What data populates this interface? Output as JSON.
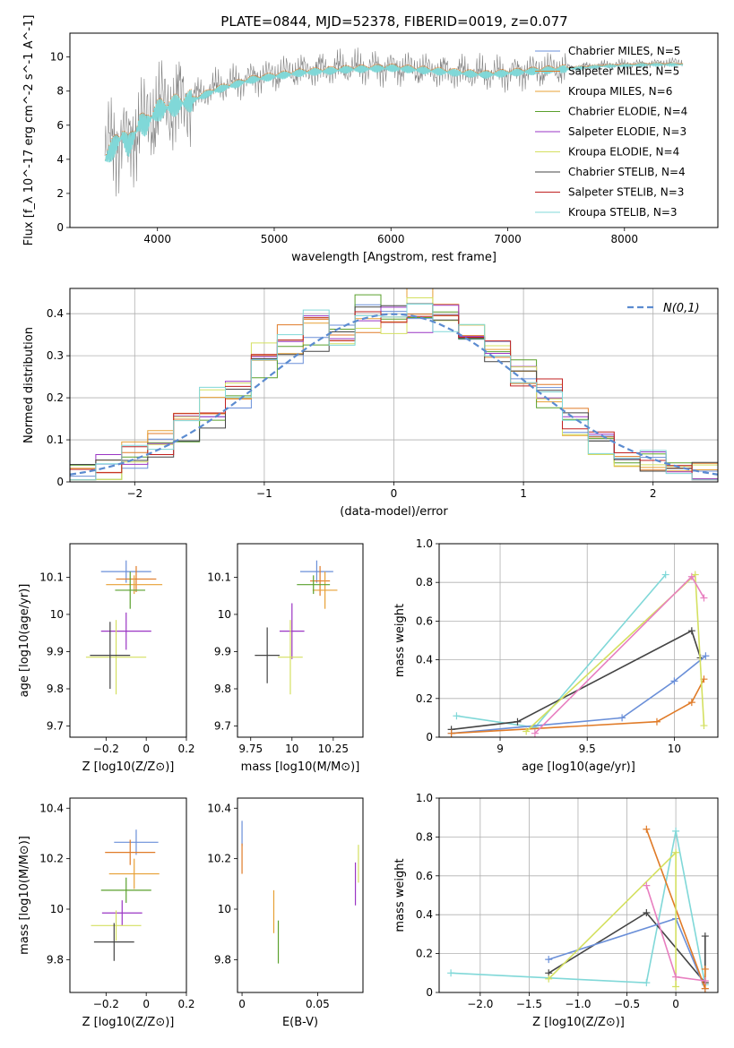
{
  "title": "PLATE=0844, MJD=52378, FIBERID=0019, z=0.077",
  "legend_labels": [
    "Chabrier MILES, N_SSP=5",
    "Salpeter MILES, N_SSP=5",
    "Kroupa MILES, N_SSP=6",
    "Chabrier ELODIE, N_SSP=4",
    "Salpeter ELODIE, N_SSP=3",
    "Kroupa ELODIE, N_SSP=4",
    "Chabrier STELIB, N_SSP=4",
    "Salpeter STELIB, N_SSP=3",
    "Kroupa STELIB, N_SSP=3"
  ],
  "colors": [
    "#6a8fd8",
    "#e07b28",
    "#e7a035",
    "#5aa02c",
    "#9a35c4",
    "#d4e060",
    "#444444",
    "#c02020",
    "#80d8d8"
  ],
  "chart_data": [
    {
      "type": "line",
      "name": "spectrum",
      "title": "PLATE=0844, MJD=52378, FIBERID=0019, z=0.077",
      "xlabel": "wavelength [Angstrom, rest frame]",
      "ylabel": "Flux [f_λ 10^-17 erg cm^-2 s^-1 A^-1]",
      "xlim": [
        3250,
        8800
      ],
      "ylim": [
        0,
        11.4
      ],
      "xticks": [
        4000,
        5000,
        6000,
        7000,
        8000
      ],
      "yticks": [
        0,
        2,
        4,
        6,
        8,
        10
      ],
      "x": [
        3550,
        3600,
        3650,
        3700,
        3750,
        3800,
        3850,
        3900,
        3950,
        4000,
        4100,
        4200,
        4300,
        4400,
        4500,
        4600,
        4700,
        4800,
        4900,
        5000,
        5200,
        5400,
        5600,
        5800,
        6000,
        6200,
        6400,
        6600,
        6800,
        7000,
        7200,
        7400,
        7600,
        7800,
        8000,
        8200,
        8400
      ],
      "series": [
        {
          "name": "data",
          "values": [
            4.2,
            4.8,
            5.2,
            5.6,
            4.6,
            5.6,
            6.4,
            6.0,
            6.6,
            7.0,
            7.2,
            7.4,
            7.6,
            7.9,
            8.2,
            8.4,
            8.6,
            8.8,
            8.9,
            9.0,
            9.2,
            9.3,
            9.35,
            9.4,
            9.4,
            9.3,
            9.2,
            9.1,
            9.0,
            9.1,
            9.2,
            9.3,
            9.4,
            9.5,
            9.6,
            9.6,
            9.7
          ]
        },
        {
          "name": "model",
          "values": [
            4.0,
            4.5,
            5.0,
            5.4,
            4.8,
            5.4,
            6.2,
            6.0,
            6.5,
            6.9,
            7.1,
            7.3,
            7.5,
            7.8,
            8.1,
            8.3,
            8.5,
            8.7,
            8.8,
            8.9,
            9.1,
            9.2,
            9.3,
            9.35,
            9.4,
            9.3,
            9.2,
            9.1,
            9.0,
            9.1,
            9.2,
            9.3,
            9.4,
            9.5,
            9.55,
            9.6,
            9.6
          ]
        }
      ],
      "legend": "upper right"
    },
    {
      "type": "line",
      "name": "residual-histogram",
      "xlabel": "(data-model)/error",
      "ylabel": "Normed distribution",
      "xlim": [
        -2.5,
        2.5
      ],
      "ylim": [
        0,
        0.46
      ],
      "xticks": [
        -2,
        -1,
        0,
        1,
        2
      ],
      "yticks": [
        0.0,
        0.1,
        0.2,
        0.3,
        0.4
      ],
      "grid": true,
      "legend": "upper right",
      "reference_label": "N(0,1)",
      "bin_edges": [
        -2.5,
        -2.3,
        -2.1,
        -1.9,
        -1.7,
        -1.5,
        -1.3,
        -1.1,
        -0.9,
        -0.7,
        -0.5,
        -0.3,
        -0.1,
        0.1,
        0.3,
        0.5,
        0.7,
        0.9,
        1.1,
        1.3,
        1.5,
        1.7,
        1.9,
        2.1,
        2.3,
        2.5
      ],
      "series": [
        {
          "name": "h1",
          "values": [
            0.02,
            0.03,
            0.05,
            0.08,
            0.12,
            0.13,
            0.2,
            0.27,
            0.3,
            0.33,
            0.38,
            0.42,
            0.4,
            0.4,
            0.38,
            0.36,
            0.31,
            0.27,
            0.2,
            0.14,
            0.09,
            0.07,
            0.05,
            0.04,
            0.03
          ]
        },
        {
          "name": "h2",
          "values": [
            0.02,
            0.04,
            0.06,
            0.09,
            0.14,
            0.18,
            0.22,
            0.3,
            0.35,
            0.37,
            0.36,
            0.38,
            0.4,
            0.38,
            0.4,
            0.35,
            0.32,
            0.25,
            0.22,
            0.15,
            0.1,
            0.08,
            0.05,
            0.03,
            0.02
          ]
        },
        {
          "name": "h3",
          "values": [
            0.02,
            0.03,
            0.07,
            0.1,
            0.15,
            0.2,
            0.21,
            0.31,
            0.33,
            0.4,
            0.35,
            0.39,
            0.37,
            0.44,
            0.37,
            0.35,
            0.3,
            0.26,
            0.2,
            0.13,
            0.09,
            0.06,
            0.05,
            0.03,
            0.02
          ]
        }
      ]
    },
    {
      "type": "scatter",
      "name": "age-vs-Z",
      "xlabel": "Z [log10(Z/Z⊙)]",
      "ylabel": "age [log10(age/yr)]",
      "xlim": [
        -0.38,
        0.2
      ],
      "ylim": [
        9.67,
        10.19
      ],
      "xticks": [
        -0.2,
        0.0,
        0.2
      ],
      "yticks": [
        9.7,
        9.8,
        9.9,
        10.0,
        10.1
      ],
      "points": [
        {
          "x": -0.1,
          "y": 10.115,
          "xerr": 0.25,
          "yerr": 0.06
        },
        {
          "x": -0.05,
          "y": 10.095,
          "xerr": 0.2,
          "yerr": 0.07
        },
        {
          "x": -0.06,
          "y": 10.08,
          "xerr": 0.28,
          "yerr": 0.05
        },
        {
          "x": -0.08,
          "y": 10.065,
          "xerr": 0.15,
          "yerr": 0.1
        },
        {
          "x": -0.1,
          "y": 9.955,
          "xerr": 0.25,
          "yerr": 0.1
        },
        {
          "x": -0.15,
          "y": 9.885,
          "xerr": 0.3,
          "yerr": 0.2
        },
        {
          "x": -0.18,
          "y": 9.89,
          "xerr": 0.2,
          "yerr": 0.18
        }
      ]
    },
    {
      "type": "scatter",
      "name": "age-vs-mass",
      "xlabel": "mass [log10(M/M⊙)]",
      "ylabel": "",
      "xlim": [
        9.67,
        10.43
      ],
      "ylim": [
        9.67,
        10.19
      ],
      "xticks": [
        9.75,
        10.0,
        10.25
      ],
      "yticks": [
        9.7,
        9.8,
        9.9,
        10.0,
        10.1
      ],
      "points": [
        {
          "x": 10.15,
          "y": 10.115,
          "xerr": 0.2,
          "yerr": 0.06
        },
        {
          "x": 10.17,
          "y": 10.09,
          "xerr": 0.12,
          "yerr": 0.08
        },
        {
          "x": 10.2,
          "y": 10.065,
          "xerr": 0.15,
          "yerr": 0.1
        },
        {
          "x": 10.13,
          "y": 10.08,
          "xerr": 0.2,
          "yerr": 0.05
        },
        {
          "x": 10.0,
          "y": 9.955,
          "xerr": 0.15,
          "yerr": 0.15
        },
        {
          "x": 9.99,
          "y": 9.885,
          "xerr": 0.15,
          "yerr": 0.2
        },
        {
          "x": 9.85,
          "y": 9.89,
          "xerr": 0.15,
          "yerr": 0.15
        }
      ]
    },
    {
      "type": "line",
      "name": "mass-weight-vs-age",
      "xlabel": "age [log10(age/yr)]",
      "ylabel": "mass weight",
      "xlim": [
        8.65,
        10.25
      ],
      "ylim": [
        0,
        1.0
      ],
      "xticks": [
        9.0,
        9.5,
        10.0
      ],
      "yticks": [
        0.0,
        0.2,
        0.4,
        0.6,
        0.8,
        1.0
      ],
      "grid": true,
      "series": [
        {
          "name": "s1",
          "x": [
            8.75,
            9.2,
            9.95
          ],
          "values": [
            0.11,
            0.05,
            0.84
          ]
        },
        {
          "name": "s2",
          "x": [
            8.72,
            9.1,
            10.1,
            10.15
          ],
          "values": [
            0.04,
            0.08,
            0.55,
            0.41
          ]
        },
        {
          "name": "s3",
          "x": [
            8.72,
            9.7,
            10.0,
            10.18
          ],
          "values": [
            0.02,
            0.1,
            0.29,
            0.42
          ]
        },
        {
          "name": "s4",
          "x": [
            8.72,
            9.9,
            10.1,
            10.17
          ],
          "values": [
            0.02,
            0.08,
            0.18,
            0.3
          ]
        },
        {
          "name": "s5",
          "x": [
            9.15,
            10.12,
            10.17
          ],
          "values": [
            0.03,
            0.84,
            0.06
          ]
        },
        {
          "name": "s6",
          "x": [
            9.2,
            10.1,
            10.17
          ],
          "values": [
            0.02,
            0.83,
            0.72
          ]
        }
      ]
    },
    {
      "type": "scatter",
      "name": "mass-vs-Z",
      "xlabel": "Z [log10(Z/Z⊙)]",
      "ylabel": "mass [log10(M/M⊙)]",
      "xlim": [
        -0.38,
        0.2
      ],
      "ylim": [
        9.67,
        10.44
      ],
      "xticks": [
        -0.2,
        0.0,
        0.2
      ],
      "yticks": [
        9.8,
        10.0,
        10.2,
        10.4
      ],
      "points": [
        {
          "x": -0.05,
          "y": 10.265,
          "xerr": 0.22,
          "yerr": 0.1
        },
        {
          "x": -0.08,
          "y": 10.225,
          "xerr": 0.25,
          "yerr": 0.1
        },
        {
          "x": -0.06,
          "y": 10.14,
          "xerr": 0.25,
          "yerr": 0.12
        },
        {
          "x": -0.1,
          "y": 10.075,
          "xerr": 0.25,
          "yerr": 0.1
        },
        {
          "x": -0.12,
          "y": 9.985,
          "xerr": 0.2,
          "yerr": 0.1
        },
        {
          "x": -0.15,
          "y": 9.935,
          "xerr": 0.25,
          "yerr": 0.12
        },
        {
          "x": -0.16,
          "y": 9.87,
          "xerr": 0.2,
          "yerr": 0.15
        }
      ]
    },
    {
      "type": "scatter",
      "name": "mass-vs-ebv",
      "xlabel": "E(B-V)",
      "ylabel": "",
      "xlim": [
        -0.003,
        0.08
      ],
      "ylim": [
        9.67,
        10.44
      ],
      "xticks": [
        0.0,
        0.05
      ],
      "yticks": [
        9.8,
        10.0,
        10.2,
        10.4
      ],
      "points": [
        {
          "x": 0.0,
          "y": 10.3,
          "yerr": 0.1
        },
        {
          "x": 0.0,
          "y": 10.2,
          "yerr": 0.12
        },
        {
          "x": 0.021,
          "y": 9.99,
          "yerr": 0.17
        },
        {
          "x": 0.024,
          "y": 9.87,
          "yerr": 0.17
        },
        {
          "x": 0.075,
          "y": 10.1,
          "yerr": 0.17
        },
        {
          "x": 0.077,
          "y": 10.18,
          "yerr": 0.15
        }
      ]
    },
    {
      "type": "line",
      "name": "mass-weight-vs-Z",
      "xlabel": "Z [log10(Z/Z⊙)]",
      "ylabel": "mass weight",
      "xlim": [
        -2.42,
        0.43
      ],
      "ylim": [
        0,
        1.0
      ],
      "xticks": [
        -2.0,
        -1.5,
        -1.0,
        -0.5,
        0.0
      ],
      "yticks": [
        0.0,
        0.2,
        0.4,
        0.6,
        0.8,
        1.0
      ],
      "grid": true,
      "series": [
        {
          "name": "s1",
          "x": [
            -2.3,
            -0.3,
            0.0,
            0.3
          ],
          "values": [
            0.1,
            0.05,
            0.83,
            0.04
          ]
        },
        {
          "name": "s2",
          "x": [
            -1.3,
            -0.3,
            0.3,
            0.3
          ],
          "values": [
            0.1,
            0.41,
            0.05,
            0.29
          ]
        },
        {
          "name": "s3",
          "x": [
            -1.3,
            0.0,
            0.3
          ],
          "values": [
            0.17,
            0.38,
            0.02
          ]
        },
        {
          "name": "s4",
          "x": [
            -0.3,
            0.3,
            0.3
          ],
          "values": [
            0.84,
            0.02,
            0.12
          ]
        },
        {
          "name": "s5",
          "x": [
            -1.3,
            0.0,
            0.0
          ],
          "values": [
            0.07,
            0.72,
            0.03
          ]
        },
        {
          "name": "s6",
          "x": [
            -0.3,
            0.0,
            0.3
          ],
          "values": [
            0.55,
            0.08,
            0.06
          ]
        }
      ]
    }
  ]
}
